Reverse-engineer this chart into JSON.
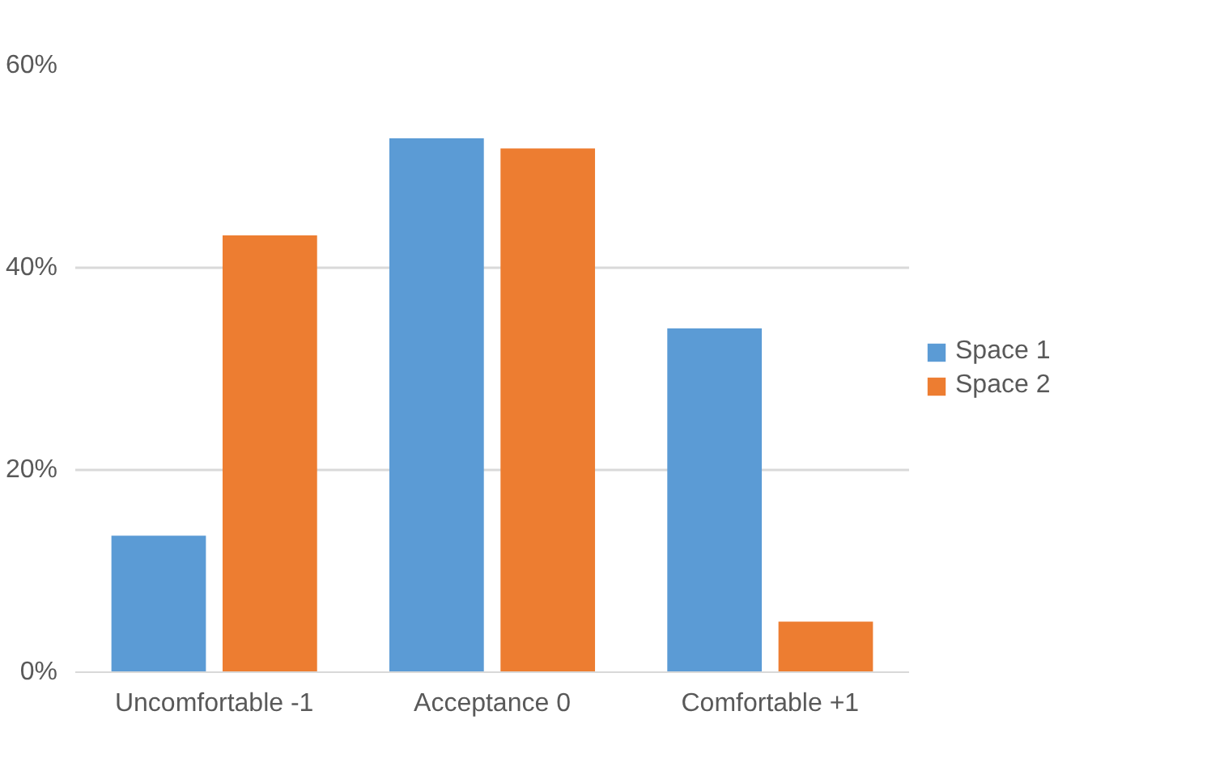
{
  "chart_data": {
    "type": "bar",
    "categories": [
      "Uncomfortable -1",
      "Acceptance 0",
      "Comfortable +1"
    ],
    "series": [
      {
        "name": "Space 1",
        "color": "#5b9bd5",
        "values": [
          13.5,
          52.8,
          34.0
        ]
      },
      {
        "name": "Space 2",
        "color": "#ed7d31",
        "values": [
          43.2,
          51.8,
          5.0
        ]
      }
    ],
    "ylim": [
      0,
      60
    ],
    "yticks": [
      {
        "value": 0,
        "label": "0%"
      },
      {
        "value": 20,
        "label": "20%"
      },
      {
        "value": 40,
        "label": "40%"
      },
      {
        "value": 60,
        "label": "60%"
      }
    ],
    "grid": "y",
    "legend": "right"
  }
}
